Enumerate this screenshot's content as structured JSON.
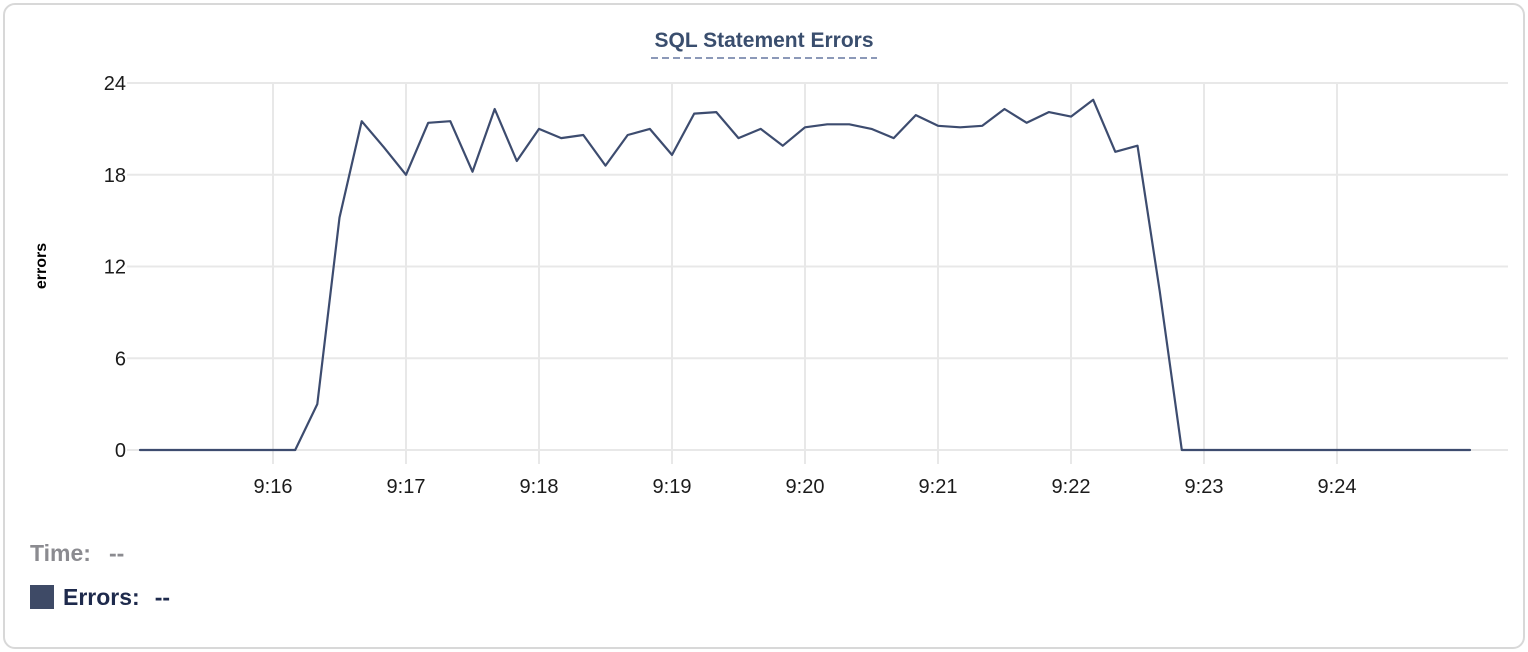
{
  "title": "SQL Statement Errors",
  "legend": {
    "time_label": "Time:",
    "time_value": "--",
    "errors_label": "Errors:",
    "errors_value": "--"
  },
  "colors": {
    "series_line": "#3d4c6f",
    "series_swatch": "#3e4a66",
    "title_text": "#3a4e6e",
    "title_underline": "#8c99b8",
    "grid": "#e8e8e8",
    "tick_text": "#1b1b1b",
    "time_label_text": "#8b8b90",
    "errors_label_text": "#1e2a4c",
    "card_border": "#d8d8d8"
  },
  "chart_data": {
    "type": "line",
    "title": "SQL Statement Errors",
    "xlabel": "",
    "ylabel": "errors",
    "ylim": [
      0,
      24
    ],
    "y_ticks": [
      0,
      6,
      12,
      18,
      24
    ],
    "x_domain": [
      "9:15:00",
      "9:25:00"
    ],
    "x_ticks": [
      "9:16",
      "9:17",
      "9:18",
      "9:19",
      "9:20",
      "9:21",
      "9:22",
      "9:23",
      "9:24"
    ],
    "grid": true,
    "legend_position": "bottom-left",
    "series": [
      {
        "name": "Errors",
        "color": "#3d4c6f",
        "points": [
          [
            "9:15:00",
            0
          ],
          [
            "9:15:10",
            0
          ],
          [
            "9:15:20",
            0
          ],
          [
            "9:15:30",
            0
          ],
          [
            "9:15:40",
            0
          ],
          [
            "9:15:50",
            0
          ],
          [
            "9:16:00",
            0
          ],
          [
            "9:16:10",
            0
          ],
          [
            "9:16:20",
            3
          ],
          [
            "9:16:30",
            15.2
          ],
          [
            "9:16:40",
            21.5
          ],
          [
            "9:16:50",
            19.8
          ],
          [
            "9:17:00",
            18
          ],
          [
            "9:17:10",
            21.4
          ],
          [
            "9:17:20",
            21.5
          ],
          [
            "9:17:30",
            18.2
          ],
          [
            "9:17:40",
            22.3
          ],
          [
            "9:17:50",
            18.9
          ],
          [
            "9:18:00",
            21
          ],
          [
            "9:18:10",
            20.4
          ],
          [
            "9:18:20",
            20.6
          ],
          [
            "9:18:30",
            18.6
          ],
          [
            "9:18:40",
            20.6
          ],
          [
            "9:18:50",
            21
          ],
          [
            "9:19:00",
            19.3
          ],
          [
            "9:19:10",
            22
          ],
          [
            "9:19:20",
            22.1
          ],
          [
            "9:19:30",
            20.4
          ],
          [
            "9:19:40",
            21
          ],
          [
            "9:19:50",
            19.9
          ],
          [
            "9:20:00",
            21.1
          ],
          [
            "9:20:10",
            21.3
          ],
          [
            "9:20:20",
            21.3
          ],
          [
            "9:20:30",
            21
          ],
          [
            "9:20:40",
            20.4
          ],
          [
            "9:20:50",
            21.9
          ],
          [
            "9:21:00",
            21.2
          ],
          [
            "9:21:10",
            21.1
          ],
          [
            "9:21:20",
            21.2
          ],
          [
            "9:21:30",
            22.3
          ],
          [
            "9:21:40",
            21.4
          ],
          [
            "9:21:50",
            22.1
          ],
          [
            "9:22:00",
            21.8
          ],
          [
            "9:22:10",
            22.9
          ],
          [
            "9:22:20",
            19.5
          ],
          [
            "9:22:30",
            19.9
          ],
          [
            "9:22:40",
            10.4
          ],
          [
            "9:22:50",
            0
          ],
          [
            "9:23:00",
            0
          ],
          [
            "9:23:10",
            0
          ],
          [
            "9:23:20",
            0
          ],
          [
            "9:23:30",
            0
          ],
          [
            "9:23:40",
            0
          ],
          [
            "9:23:50",
            0
          ],
          [
            "9:24:00",
            0
          ],
          [
            "9:24:10",
            0
          ],
          [
            "9:24:20",
            0
          ],
          [
            "9:24:30",
            0
          ],
          [
            "9:24:40",
            0
          ],
          [
            "9:24:50",
            0
          ],
          [
            "9:25:00",
            0
          ]
        ]
      }
    ]
  }
}
